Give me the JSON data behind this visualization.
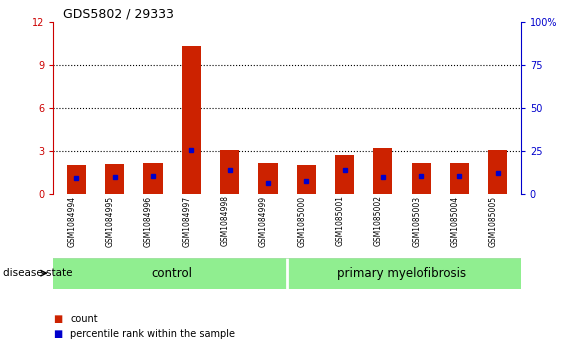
{
  "title": "GDS5802 / 29333",
  "samples": [
    "GSM1084994",
    "GSM1084995",
    "GSM1084996",
    "GSM1084997",
    "GSM1084998",
    "GSM1084999",
    "GSM1085000",
    "GSM1085001",
    "GSM1085002",
    "GSM1085003",
    "GSM1085004",
    "GSM1085005"
  ],
  "red_heights": [
    2.0,
    2.1,
    2.2,
    10.3,
    3.1,
    2.2,
    2.0,
    2.7,
    3.2,
    2.2,
    2.2,
    3.1
  ],
  "blue_positions": [
    1.1,
    1.2,
    1.3,
    3.1,
    1.7,
    0.8,
    0.9,
    1.7,
    1.2,
    1.3,
    1.3,
    1.5
  ],
  "ylim_left": [
    0,
    12
  ],
  "ylim_right": [
    0,
    100
  ],
  "yticks_left": [
    0,
    3,
    6,
    9,
    12
  ],
  "yticks_right": [
    0,
    25,
    50,
    75,
    100
  ],
  "ytick_labels_left": [
    "0",
    "3",
    "6",
    "9",
    "12"
  ],
  "ytick_labels_right": [
    "0",
    "25",
    "50",
    "75",
    "100%"
  ],
  "left_axis_color": "#cc0000",
  "right_axis_color": "#0000cc",
  "bar_color": "#cc2200",
  "marker_color": "#0000cc",
  "control_label": "control",
  "primary_label": "primary myelofibrosis",
  "disease_state_label": "disease state",
  "legend_count": "count",
  "legend_percentile": "percentile rank within the sample",
  "group_bg_color": "#90ee90",
  "plot_bg_color": "#ffffff",
  "tick_area_bg": "#d3d3d3",
  "bar_width": 0.5,
  "grid_color": "#000000"
}
